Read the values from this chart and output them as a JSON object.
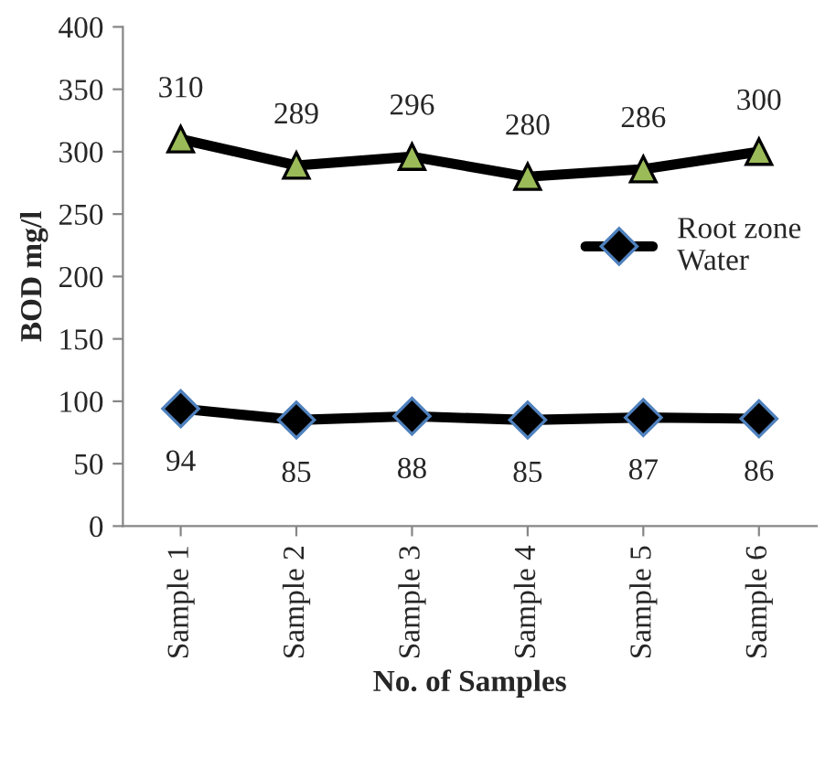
{
  "chart_data": {
    "type": "line",
    "xlabel": "No. of Samples",
    "ylabel": "BOD mg/l",
    "categories": [
      "Sample 1",
      "Sample 2",
      "Sample 3",
      "Sample 4",
      "Sample 5",
      "Sample 6"
    ],
    "series": [
      {
        "color": "#9bbb59",
        "marker": "triangle",
        "values": [
          310,
          289,
          296,
          280,
          286,
          300
        ]
      },
      {
        "name": "Root zone\nWater",
        "color": "#4f81bd",
        "marker": "diamond",
        "values": [
          94,
          85,
          88,
          85,
          87,
          86
        ]
      }
    ],
    "ylim": [
      0,
      400
    ],
    "yticks": [
      0,
      50,
      100,
      150,
      200,
      250,
      300,
      350,
      400
    ],
    "data_labels": true,
    "grid": false,
    "legend": "right",
    "line_style": "solid"
  }
}
